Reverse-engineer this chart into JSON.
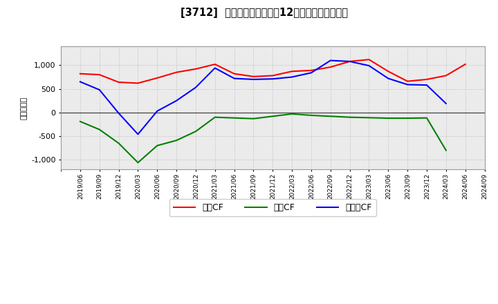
{
  "title": "[3712]  キャッシュフローの12か月移動合計の推移",
  "ylabel": "（百万円）",
  "x_labels": [
    "2019/06",
    "2019/09",
    "2019/12",
    "2020/03",
    "2020/06",
    "2020/09",
    "2020/12",
    "2021/03",
    "2021/06",
    "2021/09",
    "2021/12",
    "2022/03",
    "2022/06",
    "2022/09",
    "2022/12",
    "2023/03",
    "2023/06",
    "2023/09",
    "2023/12",
    "2024/03",
    "2024/06",
    "2024/09"
  ],
  "operating_cf": [
    820,
    800,
    640,
    620,
    730,
    850,
    920,
    1020,
    820,
    760,
    780,
    870,
    890,
    960,
    1080,
    1120,
    870,
    660,
    700,
    780,
    1020,
    null
  ],
  "investing_cf": [
    -190,
    -360,
    -650,
    -1060,
    -700,
    -590,
    -400,
    -100,
    -115,
    -130,
    -80,
    -30,
    -60,
    -80,
    -100,
    -110,
    -120,
    -120,
    -115,
    -800,
    null,
    null
  ],
  "free_cf": [
    650,
    480,
    -15,
    -460,
    30,
    250,
    530,
    940,
    720,
    700,
    710,
    750,
    840,
    1100,
    1080,
    990,
    720,
    590,
    580,
    190,
    null,
    null
  ],
  "operating_color": "#ff0000",
  "investing_color": "#008000",
  "free_color": "#0000ff",
  "bg_color": "#ffffff",
  "plot_bg_color": "#ebebeb",
  "grid_color": "#bbbbbb",
  "ylim": [
    -1200,
    1400
  ],
  "yticks": [
    -1000,
    -500,
    0,
    500,
    1000
  ],
  "legend_labels": [
    "営業CF",
    "投資CF",
    "フリーCF"
  ]
}
